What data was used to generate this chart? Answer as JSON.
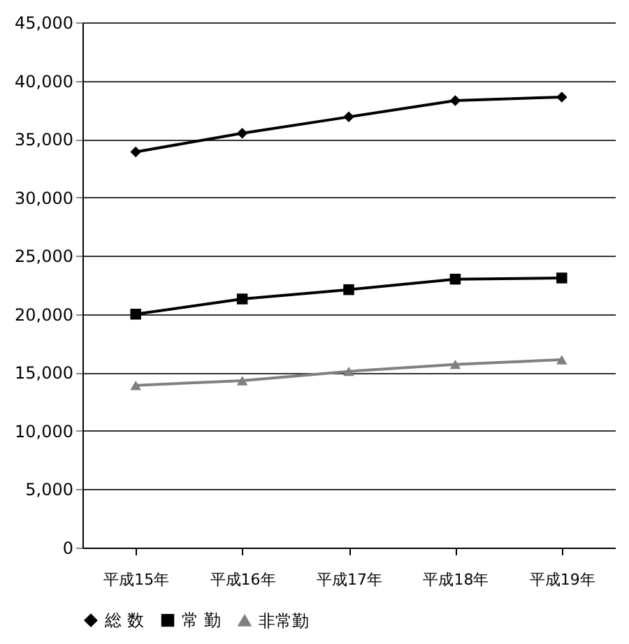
{
  "chart_data": {
    "type": "line",
    "categories": [
      "平成15年",
      "平成16年",
      "平成17年",
      "平成18年",
      "平成19年"
    ],
    "series": [
      {
        "name": "総 数",
        "color": "#000000",
        "marker": "diamond",
        "values": [
          33900,
          35500,
          36900,
          38300,
          38600
        ]
      },
      {
        "name": "常 勤",
        "color": "#000000",
        "marker": "square",
        "values": [
          20000,
          21300,
          22100,
          23000,
          23100
        ]
      },
      {
        "name": "非常勤",
        "color": "#808080",
        "marker": "triangle",
        "values": [
          13900,
          14300,
          15100,
          15700,
          16100
        ]
      }
    ],
    "ylim": [
      0,
      45000
    ],
    "yticks": [
      0,
      {
        "value": 5000,
        "label": "5,000"
      },
      {
        "value": 10000,
        "label": "10,000"
      },
      {
        "value": 15000,
        "label": "15,000"
      },
      {
        "value": 20000,
        "label": "20,000"
      },
      {
        "value": 25000,
        "label": "25,000"
      },
      {
        "value": 30000,
        "label": "30,000"
      },
      {
        "value": 35000,
        "label": "35,000"
      },
      {
        "value": 40000,
        "label": "40,000"
      },
      {
        "value": 45000,
        "label": "45,000"
      }
    ],
    "grid": "y",
    "legend": "bottom",
    "line_style": "solid"
  }
}
